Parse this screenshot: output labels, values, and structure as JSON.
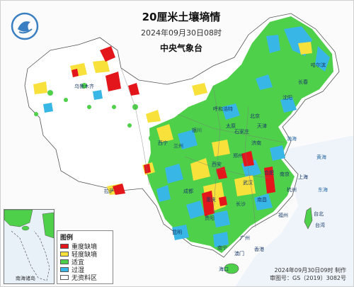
{
  "header": {
    "title": "20厘米土壤墒情",
    "datetime": "2024年09月30日08时",
    "agency": "中央气象台"
  },
  "logo": {
    "icon": "cma-logo-icon",
    "color": "#3a7fc1"
  },
  "legend": {
    "title": "图例",
    "items": [
      {
        "label": "重度缺墒",
        "color": "#e3161c"
      },
      {
        "label": "轻度缺墒",
        "color": "#f7e13a"
      },
      {
        "label": "适宜",
        "color": "#4fd04a"
      },
      {
        "label": "过湿",
        "color": "#38b7e6"
      },
      {
        "label": "无资料区",
        "color": "#ffffff"
      }
    ]
  },
  "footer": {
    "made": "2024年09月30日09时 制作",
    "approval": "审图号：GS（2019）3082号"
  },
  "inset": {
    "label": "南海诸岛"
  },
  "places": [
    {
      "name": "哈尔滨",
      "kind": "city"
    },
    {
      "name": "长春",
      "kind": "city"
    },
    {
      "name": "沈阳",
      "kind": "city"
    },
    {
      "name": "呼和浩特",
      "kind": "city"
    },
    {
      "name": "北京",
      "kind": "city"
    },
    {
      "name": "天津",
      "kind": "city"
    },
    {
      "name": "石家庄",
      "kind": "city"
    },
    {
      "name": "太原",
      "kind": "city"
    },
    {
      "name": "济南",
      "kind": "city"
    },
    {
      "name": "郑州",
      "kind": "city"
    },
    {
      "name": "西安",
      "kind": "city"
    },
    {
      "name": "兰州",
      "kind": "city"
    },
    {
      "name": "银川",
      "kind": "city"
    },
    {
      "name": "西宁",
      "kind": "city"
    },
    {
      "name": "乌鲁木齐",
      "kind": "city"
    },
    {
      "name": "拉萨",
      "kind": "city"
    },
    {
      "name": "成都",
      "kind": "city"
    },
    {
      "name": "重庆",
      "kind": "city"
    },
    {
      "name": "武汉",
      "kind": "city"
    },
    {
      "name": "合肥",
      "kind": "city"
    },
    {
      "name": "南京",
      "kind": "city"
    },
    {
      "name": "上海",
      "kind": "city"
    },
    {
      "name": "杭州",
      "kind": "city"
    },
    {
      "name": "长沙",
      "kind": "city"
    },
    {
      "name": "南昌",
      "kind": "city"
    },
    {
      "name": "福州",
      "kind": "city"
    },
    {
      "name": "贵阳",
      "kind": "city"
    },
    {
      "name": "昆明",
      "kind": "city"
    },
    {
      "name": "南宁",
      "kind": "city"
    },
    {
      "name": "广州",
      "kind": "city"
    },
    {
      "name": "台北",
      "kind": "city"
    },
    {
      "name": "香港",
      "kind": "city"
    },
    {
      "name": "澳门",
      "kind": "city"
    },
    {
      "name": "海口",
      "kind": "city"
    },
    {
      "name": "渤海",
      "kind": "sea"
    },
    {
      "name": "黄海",
      "kind": "sea"
    },
    {
      "name": "东海",
      "kind": "sea"
    },
    {
      "name": "台湾",
      "kind": "region"
    }
  ]
}
